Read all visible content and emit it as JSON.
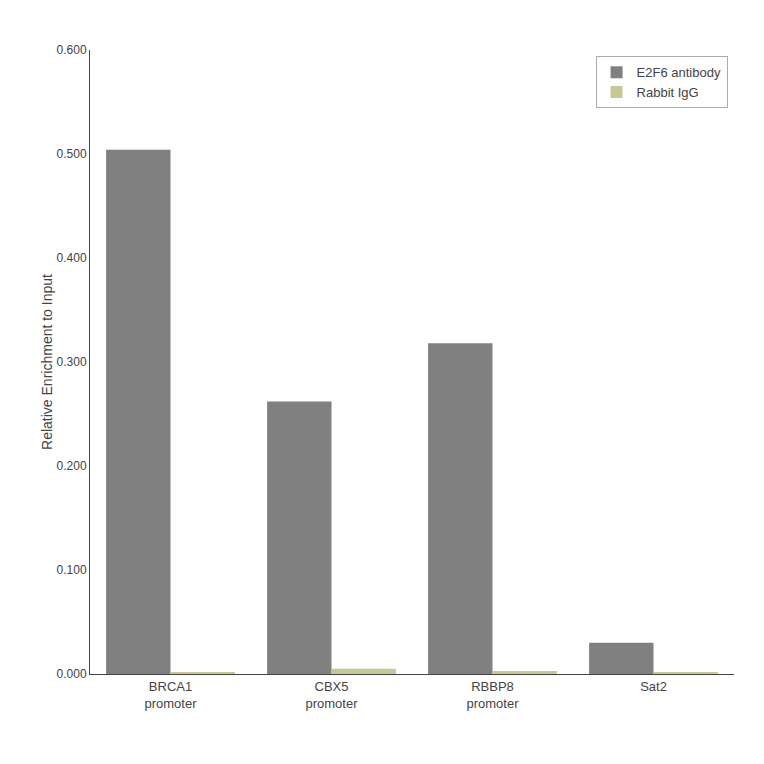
{
  "chart_data": {
    "type": "bar",
    "categories": [
      "BRCA1\npromoter",
      "CBX5\npromoter",
      "RBBP8\npromoter",
      "Sat2"
    ],
    "series": [
      {
        "name": "E2F6 antibody",
        "color": "#808080",
        "values": [
          0.504,
          0.262,
          0.318,
          0.03
        ]
      },
      {
        "name": "Rabbit IgG",
        "color": "#c8c896",
        "values": [
          0.002,
          0.005,
          0.003,
          0.002
        ]
      }
    ],
    "ylabel": "Relative Enrichment to Input",
    "ylim": [
      0,
      0.6
    ],
    "yticks": [
      {
        "value": 0,
        "label": "0.000"
      },
      {
        "value": 0.1,
        "label": "0.100"
      },
      {
        "value": 0.2,
        "label": "0.200"
      },
      {
        "value": 0.3,
        "label": "0.300"
      },
      {
        "value": 0.4,
        "label": "0.400"
      },
      {
        "value": 0.5,
        "label": "0.500"
      },
      {
        "value": 0.6,
        "label": "0.600"
      }
    ],
    "grid": false,
    "legend": "upper right"
  }
}
